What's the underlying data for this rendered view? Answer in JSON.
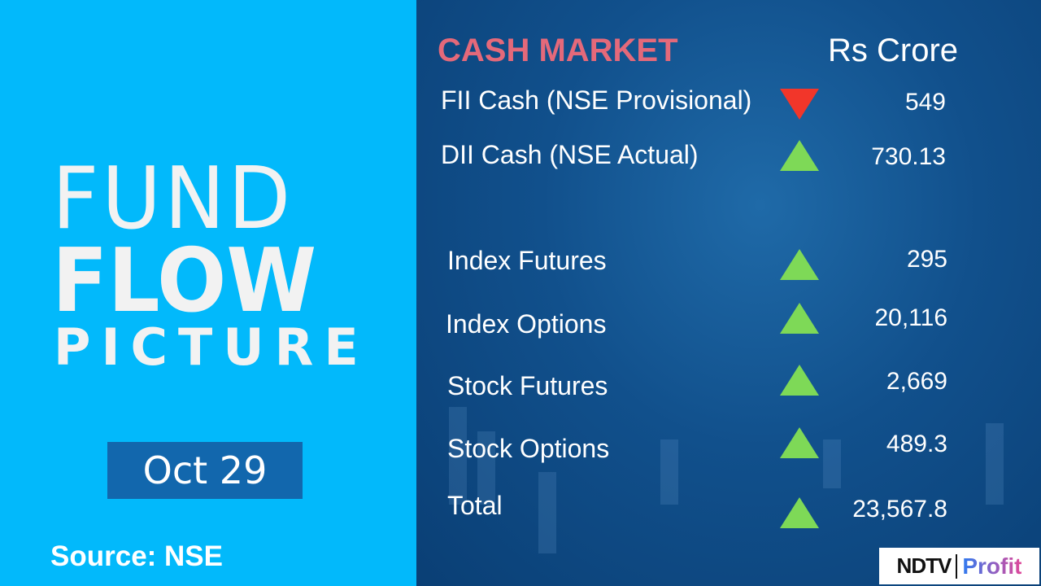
{
  "left": {
    "line1": "FUND",
    "line2": "FLOW",
    "line3": "PICTURE",
    "date": "Oct 29",
    "source": "Source: NSE"
  },
  "header": {
    "title": "CASH MARKET",
    "unit": "Rs Crore"
  },
  "rows": [
    {
      "label": "FII Cash (NSE Provisional)",
      "value": "549",
      "direction": "down"
    },
    {
      "label": "DII Cash (NSE Actual)",
      "value": "730.13",
      "direction": "up"
    },
    {
      "label": "Index Futures",
      "value": "295",
      "direction": "up"
    },
    {
      "label": "Index Options",
      "value": "20,116",
      "direction": "up"
    },
    {
      "label": "Stock Futures",
      "value": "2,669",
      "direction": "up"
    },
    {
      "label": "Stock Options",
      "value": "489.3",
      "direction": "up"
    },
    {
      "label": "Total",
      "value": "23,567.8",
      "direction": "up"
    }
  ],
  "colors": {
    "left_bg": "#02b9fb",
    "title": "#e4697a",
    "up": "#7ed957",
    "down": "#f2362a",
    "date_box": "#1267ad"
  },
  "logo": {
    "brand": "NDTV",
    "product": "Profit"
  }
}
